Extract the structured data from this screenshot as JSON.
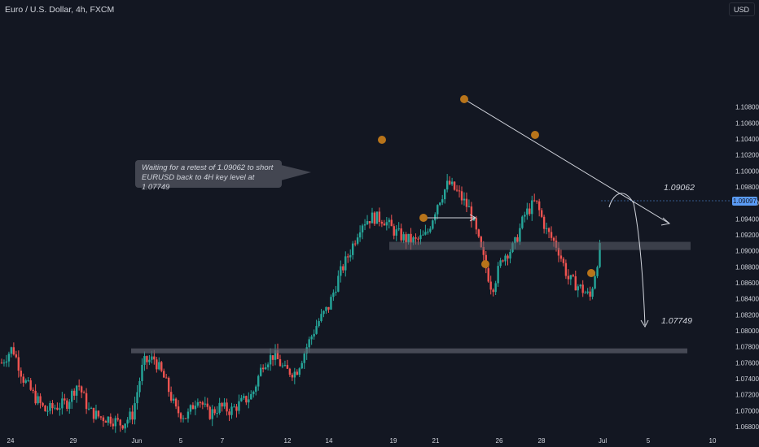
{
  "header": {
    "title": "Euro / U.S. Dollar, 4h, FXCM",
    "currency_button": "USD"
  },
  "annotation": {
    "line1": "Waiting for a retest of 1.09062 to short",
    "line2": "EURUSD back to 4H key level at 1.07749"
  },
  "levels": {
    "upper": "1.09062",
    "lower": "1.07749"
  },
  "current_price": "1.09097",
  "colors": {
    "background": "#131722",
    "up": "#26a69a",
    "down": "#ef5350",
    "text": "#d1d4dc",
    "zone": "#5d606b",
    "marker": "#b8741a",
    "price_tag": "#5b9cf6"
  },
  "chart_data": {
    "type": "candlestick",
    "symbol": "EURUSD",
    "timeframe": "4h",
    "y_axis": {
      "ticks": [
        "1.10800",
        "1.10600",
        "1.10400",
        "1.10200",
        "1.10000",
        "1.09800",
        "1.09600",
        "1.09400",
        "1.09200",
        "1.09000",
        "1.08800",
        "1.08600",
        "1.08400",
        "1.08200",
        "1.08000",
        "1.07800",
        "1.07600",
        "1.07400",
        "1.07200",
        "1.07000",
        "1.06800"
      ],
      "range": [
        1.0675,
        1.1105
      ]
    },
    "x_axis": {
      "labels": [
        "24",
        "29",
        "Jun",
        "5",
        "7",
        "12",
        "14",
        "19",
        "21",
        "26",
        "28",
        "Jul",
        "5",
        "10"
      ]
    },
    "key_levels": [
      1.09062,
      1.07749
    ],
    "price_path": [
      [
        1.076,
        1.0778
      ],
      [
        1.0779,
        1.079
      ],
      [
        1.074,
        1.072
      ],
      [
        1.0718,
        1.073
      ],
      [
        1.07,
        1.0715
      ],
      [
        1.0705,
        1.069
      ],
      [
        1.071,
        1.074
      ],
      [
        1.0735,
        1.072
      ],
      [
        1.07,
        1.069
      ],
      [
        1.0692,
        1.0685
      ],
      [
        1.069,
        1.0682
      ],
      [
        1.0683,
        1.069
      ],
      [
        1.0695,
        1.0725
      ],
      [
        1.076,
        1.078
      ],
      [
        1.0765,
        1.0755
      ],
      [
        1.0738,
        1.0724
      ],
      [
        1.07,
        1.0695
      ],
      [
        1.0692,
        1.072
      ],
      [
        1.0718,
        1.069
      ],
      [
        1.0695,
        1.072
      ],
      [
        1.0705,
        1.0695
      ],
      [
        1.07,
        1.0712
      ],
      [
        1.071,
        1.072
      ],
      [
        1.072,
        1.0736
      ],
      [
        1.076,
        1.0785
      ],
      [
        1.077,
        1.0755
      ],
      [
        1.075,
        1.074
      ],
      [
        1.0748,
        1.0775
      ],
      [
        1.078,
        1.08
      ],
      [
        1.081,
        1.0835
      ],
      [
        1.083,
        1.0855
      ],
      [
        1.087,
        1.0882
      ],
      [
        1.09,
        1.0935
      ],
      [
        1.0935,
        1.0945
      ],
      [
        1.0942,
        1.0936
      ],
      [
        1.094,
        1.0918
      ],
      [
        1.0925,
        1.0925
      ],
      [
        1.0915,
        1.0912
      ],
      [
        1.0912,
        1.0915
      ],
      [
        1.092,
        1.0928
      ],
      [
        1.096,
        1.0985
      ],
      [
        1.0985,
        1.0978
      ],
      [
        1.097,
        1.0945
      ],
      [
        1.095,
        1.091
      ],
      [
        1.09,
        1.085
      ],
      [
        1.0852,
        1.089
      ],
      [
        1.0893,
        1.0905
      ],
      [
        1.0905,
        1.0925
      ],
      [
        1.0945,
        1.0965
      ],
      [
        1.0962,
        1.095
      ],
      [
        1.0925,
        1.0915
      ],
      [
        1.0905,
        1.0875
      ],
      [
        1.0865,
        1.085
      ],
      [
        1.0855,
        1.0836
      ],
      [
        1.0842,
        1.0895
      ],
      [
        1.091,
        1.091
      ]
    ]
  }
}
